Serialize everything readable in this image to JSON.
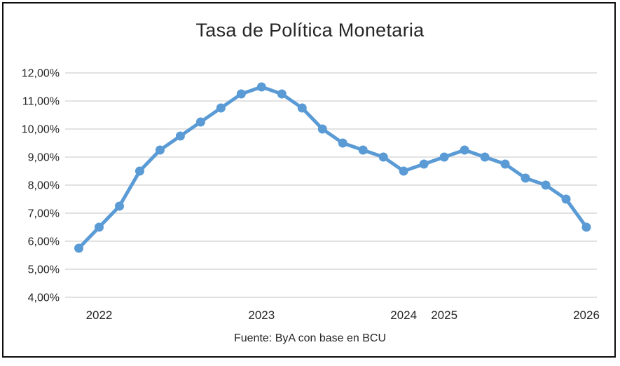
{
  "chart_data": {
    "type": "line",
    "title": "Tasa de Política Monetaria",
    "source": "Fuente: ByA con base en BCU",
    "xlabel": "",
    "ylabel": "",
    "unit": "%",
    "decimal_style": "comma",
    "ylim": [
      4,
      12
    ],
    "grid": "horizontal",
    "legend": "none",
    "marker": "circle",
    "y_ticks": [
      {
        "value": 12,
        "label": "12,00%"
      },
      {
        "value": 11,
        "label": "11,00%"
      },
      {
        "value": 10,
        "label": "10,00%"
      },
      {
        "value": 9,
        "label": "9,00%"
      },
      {
        "value": 8,
        "label": "8,00%"
      },
      {
        "value": 7,
        "label": "7,00%"
      },
      {
        "value": 6,
        "label": "6,00%"
      },
      {
        "value": 5,
        "label": "5,00%"
      },
      {
        "value": 4,
        "label": "4,00%"
      }
    ],
    "x_labels": [
      {
        "index": 1,
        "label": "2022"
      },
      {
        "index": 9,
        "label": "2023"
      },
      {
        "index": 16,
        "label": "2024"
      },
      {
        "index": 18,
        "label": "2025"
      },
      {
        "index": 25,
        "label": "2026"
      }
    ],
    "series": [
      {
        "name": "Tasa de Política Monetaria",
        "values": [
          5.75,
          6.5,
          7.25,
          8.5,
          9.25,
          9.75,
          10.25,
          10.75,
          11.25,
          11.5,
          11.25,
          10.75,
          10.0,
          9.5,
          9.25,
          9.0,
          8.5,
          8.75,
          9.0,
          9.25,
          9.0,
          8.75,
          8.25,
          8.0,
          7.5,
          6.5
        ]
      }
    ],
    "colors": {
      "line": "#5B9BD5",
      "gridline": "#D9D9D9",
      "text": "#262626",
      "frame": "#0d0d0d"
    }
  }
}
